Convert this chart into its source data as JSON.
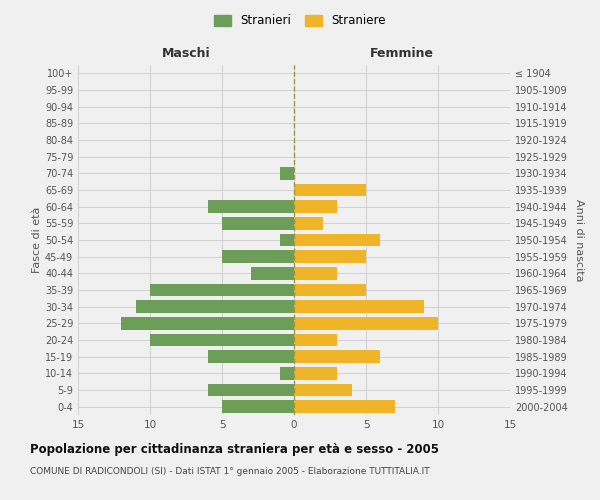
{
  "age_groups": [
    "0-4",
    "5-9",
    "10-14",
    "15-19",
    "20-24",
    "25-29",
    "30-34",
    "35-39",
    "40-44",
    "45-49",
    "50-54",
    "55-59",
    "60-64",
    "65-69",
    "70-74",
    "75-79",
    "80-84",
    "85-89",
    "90-94",
    "95-99",
    "100+"
  ],
  "birth_years": [
    "2000-2004",
    "1995-1999",
    "1990-1994",
    "1985-1989",
    "1980-1984",
    "1975-1979",
    "1970-1974",
    "1965-1969",
    "1960-1964",
    "1955-1959",
    "1950-1954",
    "1945-1949",
    "1940-1944",
    "1935-1939",
    "1930-1934",
    "1925-1929",
    "1920-1924",
    "1915-1919",
    "1910-1914",
    "1905-1909",
    "≤ 1904"
  ],
  "males": [
    5,
    6,
    1,
    6,
    10,
    12,
    11,
    10,
    3,
    5,
    1,
    5,
    6,
    0,
    1,
    0,
    0,
    0,
    0,
    0,
    0
  ],
  "females": [
    7,
    4,
    3,
    6,
    3,
    10,
    9,
    5,
    3,
    5,
    6,
    2,
    3,
    5,
    0,
    0,
    0,
    0,
    0,
    0,
    0
  ],
  "male_color": "#6d9e58",
  "female_color": "#f0b429",
  "title": "Popolazione per cittadinanza straniera per età e sesso - 2005",
  "subtitle": "COMUNE DI RADICONDOLI (SI) - Dati ISTAT 1° gennaio 2005 - Elaborazione TUTTITALIA.IT",
  "xlabel_left": "Maschi",
  "xlabel_right": "Femmine",
  "ylabel_left": "Fasce di età",
  "ylabel_right": "Anni di nascita",
  "legend_stranieri": "Stranieri",
  "legend_straniere": "Straniere",
  "xlim": 15,
  "background_color": "#f0f0f0",
  "grid_color": "#cccccc"
}
